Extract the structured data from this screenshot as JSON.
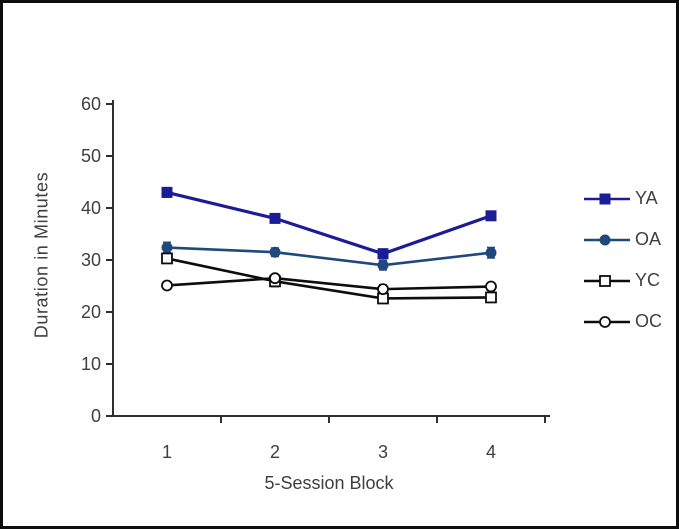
{
  "figure": {
    "background": "#ffffff",
    "border_color": "#0d0d0d",
    "text_color": "#3f3f3f",
    "axis_color": "#2f2f2f"
  },
  "chart_data": {
    "type": "line",
    "title": "",
    "xlabel": "5-Session Block",
    "ylabel": "Duration in Minutes",
    "categories": [
      "1",
      "2",
      "3",
      "4"
    ],
    "ylim": [
      0,
      60
    ],
    "yticks": [
      0,
      10,
      20,
      30,
      40,
      50,
      60
    ],
    "grid": false,
    "legend_position": "right",
    "error_bars": true,
    "series": [
      {
        "name": "YA",
        "marker": "filled-square",
        "color": "#1c1c99",
        "values": [
          43.0,
          38.0,
          31.2,
          38.5
        ],
        "errors": [
          0.9,
          0.6,
          0.9,
          0.7
        ]
      },
      {
        "name": "OA",
        "marker": "filled-circle",
        "color": "#1f497d",
        "values": [
          32.4,
          31.5,
          29.0,
          31.4
        ],
        "errors": [
          1.0,
          0.8,
          0.9,
          1.0
        ]
      },
      {
        "name": "YC",
        "marker": "open-square",
        "color": "#0d0d0d",
        "values": [
          30.3,
          25.9,
          22.6,
          22.8
        ],
        "errors": [
          0.9,
          1.0,
          0.9,
          0.7
        ]
      },
      {
        "name": "OC",
        "marker": "open-circle",
        "color": "#0d0d0d",
        "values": [
          25.1,
          26.5,
          24.4,
          24.9
        ],
        "errors": [
          0.7,
          0.7,
          0.8,
          0.5
        ]
      }
    ]
  }
}
